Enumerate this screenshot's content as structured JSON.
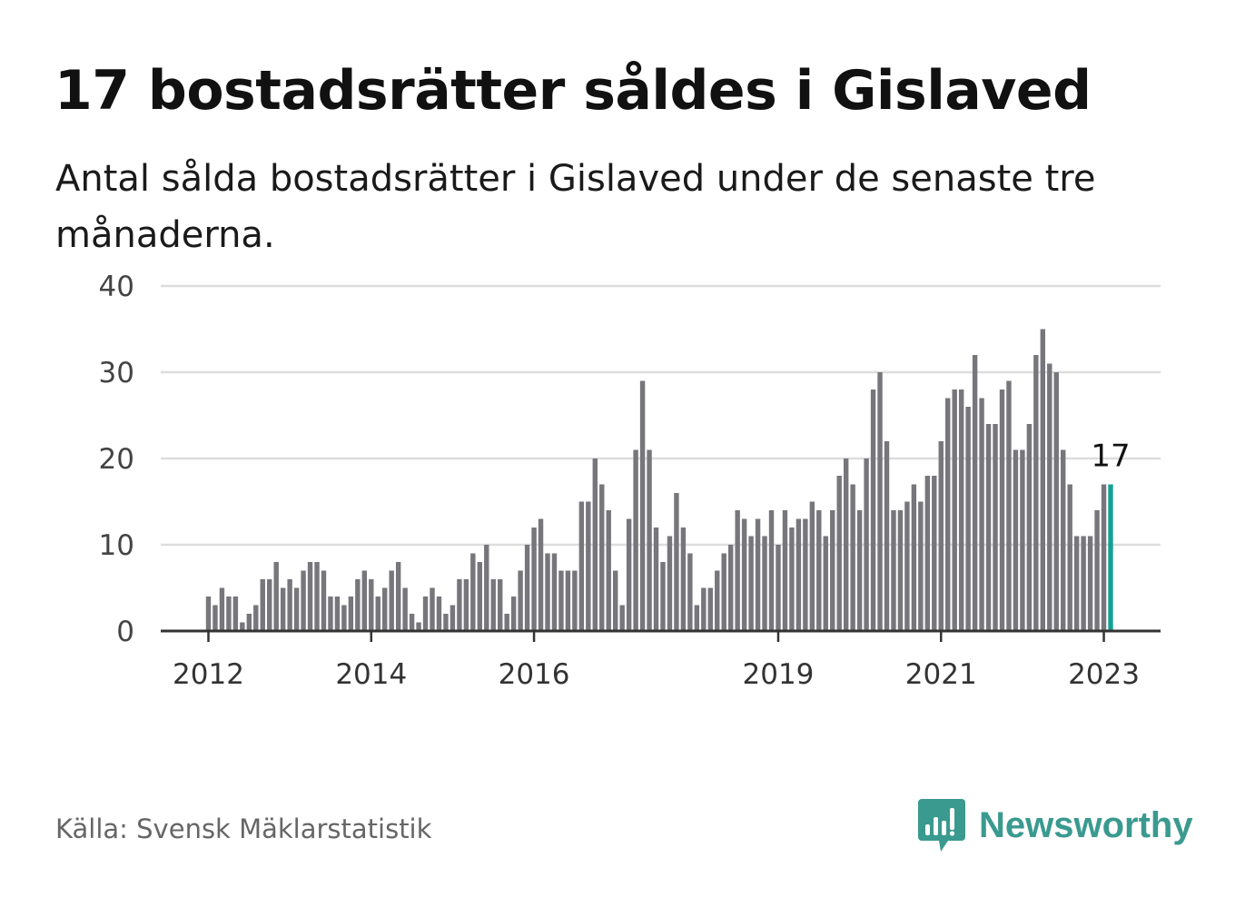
{
  "title": "17 bostadsrätter såldes i Gislaved",
  "subtitle": "Antal sålda bostadsrätter i Gislaved under de senaste tre månaderna.",
  "source": "Källa: Svensk Mäklarstatistik",
  "brand": {
    "name": "Newsworthy",
    "logo_icon": "bar-chart-speech-bubble-icon",
    "color": "#3a9a8f"
  },
  "colors": {
    "bar": "#76767c",
    "highlight": "#16a096",
    "grid": "#dddddd",
    "axis": "#333333"
  },
  "chart_data": {
    "type": "bar",
    "title": "17 bostadsrätter såldes i Gislaved",
    "xlabel": "",
    "ylabel": "",
    "ylim": [
      0,
      40
    ],
    "yticks": [
      0,
      10,
      20,
      30,
      40
    ],
    "xticks": [
      {
        "label": "2012",
        "index": 0
      },
      {
        "label": "2014",
        "index": 24
      },
      {
        "label": "2016",
        "index": 48
      },
      {
        "label": "2019",
        "index": 84
      },
      {
        "label": "2021",
        "index": 108
      },
      {
        "label": "2023",
        "index": 132
      }
    ],
    "x_start": "2012-01",
    "x_interval": "month",
    "values": [
      4,
      3,
      5,
      4,
      4,
      1,
      2,
      3,
      6,
      6,
      8,
      5,
      6,
      5,
      7,
      8,
      8,
      7,
      4,
      4,
      3,
      4,
      6,
      7,
      6,
      4,
      5,
      7,
      8,
      5,
      2,
      1,
      4,
      5,
      4,
      2,
      3,
      6,
      6,
      9,
      8,
      10,
      6,
      6,
      2,
      4,
      7,
      10,
      12,
      13,
      9,
      9,
      7,
      7,
      7,
      15,
      15,
      20,
      17,
      14,
      7,
      3,
      13,
      21,
      29,
      21,
      12,
      8,
      11,
      16,
      12,
      9,
      3,
      5,
      5,
      7,
      9,
      10,
      14,
      13,
      11,
      13,
      11,
      14,
      10,
      14,
      12,
      13,
      13,
      15,
      14,
      11,
      14,
      18,
      20,
      17,
      14,
      20,
      28,
      30,
      22,
      14,
      14,
      15,
      17,
      15,
      18,
      18,
      22,
      27,
      28,
      28,
      26,
      32,
      27,
      24,
      24,
      28,
      29,
      21,
      21,
      24,
      32,
      35,
      31,
      30,
      21,
      17,
      11,
      11,
      11,
      14,
      17,
      17
    ],
    "highlight_index": 133,
    "annotation": {
      "label": "17",
      "index": 133
    },
    "grid": true,
    "legend": "none"
  }
}
